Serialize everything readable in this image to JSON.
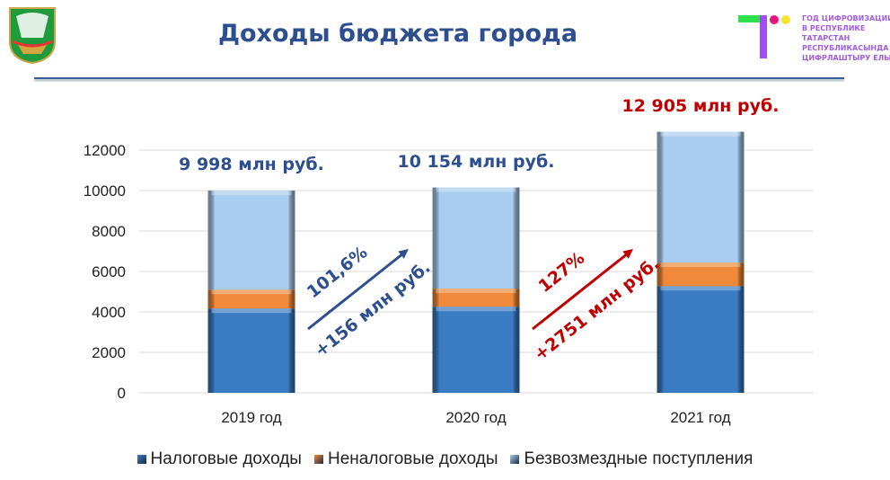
{
  "header": {
    "title": "Доходы бюджета города",
    "brand_lines": [
      "ГОД ЦИФРОВИЗАЦИИ",
      "В РЕСПУБЛИКЕ",
      "ТАТАРСТАН",
      "РЕСПУБЛИКАСЫНДА",
      "ЦИФРЛАШТЫРУ ЕЛЫ"
    ]
  },
  "chart_data": {
    "type": "bar",
    "stacked": true,
    "title": "",
    "xlabel": "",
    "ylabel": "",
    "ylim": [
      0,
      12000
    ],
    "yticks": [
      0,
      2000,
      4000,
      6000,
      8000,
      10000,
      12000
    ],
    "grid": true,
    "legend_position": "bottom",
    "categories": [
      "2019 год",
      "2020 год",
      "2021 год"
    ],
    "series": [
      {
        "name": "Налоговые доходы",
        "values": [
          4170,
          4260,
          5280
        ],
        "color": "#3a7cc4"
      },
      {
        "name": "Неналоговые доходы",
        "values": [
          930,
          890,
          1160
        ],
        "color": "#f08a3a"
      },
      {
        "name": "Безвозмездные поступления",
        "values": [
          4898,
          5004,
          6465
        ],
        "color": "#a9cdf0"
      }
    ],
    "totals": [
      {
        "label": "9 998 млн руб.",
        "color": "#2e4f8f"
      },
      {
        "label": "10 154 млн руб.",
        "color": "#2e4f8f"
      },
      {
        "label": "12 905 млн руб.",
        "color": "#c00000"
      }
    ],
    "annotations": [
      {
        "pct": "101,6%",
        "delta": "+156 млн руб.",
        "color": "#2e4f8f"
      },
      {
        "pct": "127%",
        "delta": "+2751 млн руб.",
        "color": "#c00000"
      }
    ]
  }
}
